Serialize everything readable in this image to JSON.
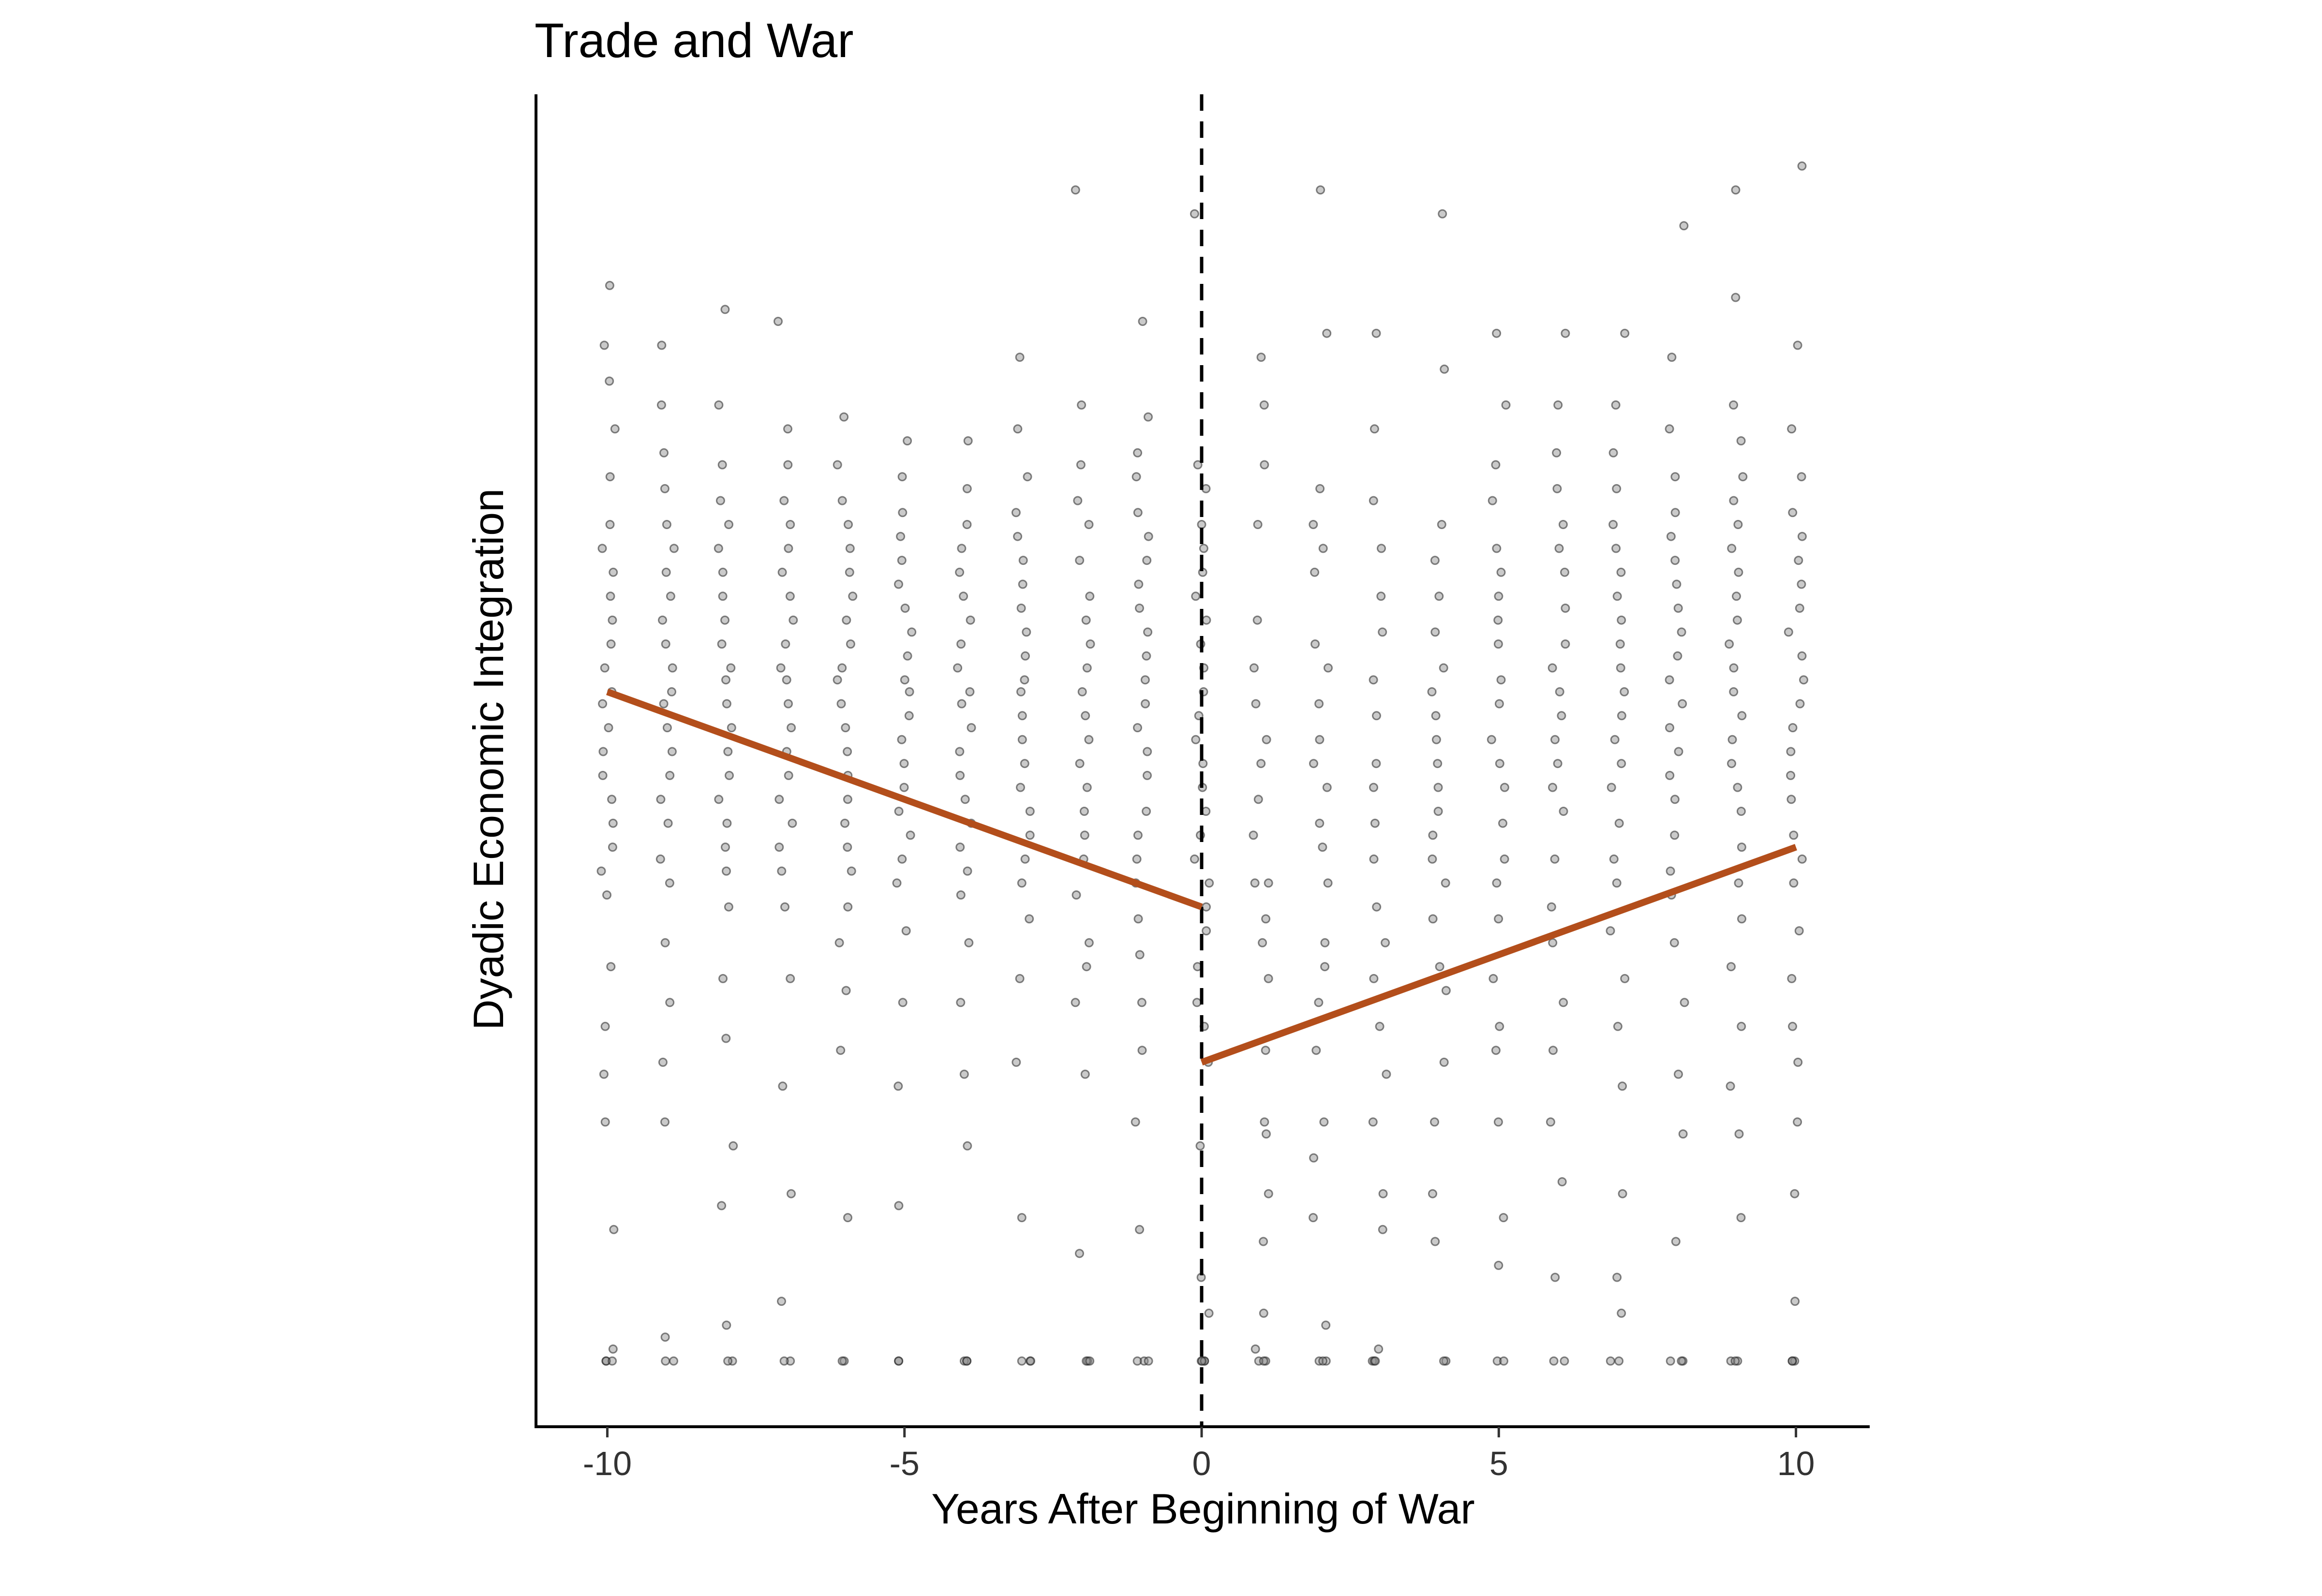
{
  "chart_data": {
    "type": "scatter",
    "title": "Trade and War",
    "xlabel": "Years After Beginning of War",
    "ylabel": "Dyadic Economic Integration",
    "xlim": [
      -11.2,
      11.2
    ],
    "ylim": [
      -0.055,
      1.06
    ],
    "x_ticks": [
      -10,
      -5,
      0,
      5,
      10
    ],
    "x_tick_labels": [
      "-10",
      "-5",
      "0",
      "5",
      "10"
    ],
    "y_ticks_shown": false,
    "grid": false,
    "legend": "none",
    "jitter_width": 0.13,
    "point_color": "#555555",
    "series": [
      {
        "type": "points",
        "description_values": "jittered observations per year",
        "per_year": [
          {
            "x": -10,
            "values": [
              0.9,
              0.85,
              0.82,
              0.78,
              0.74,
              0.7,
              0.68,
              0.66,
              0.64,
              0.62,
              0.6,
              0.58,
              0.56,
              0.55,
              0.53,
              0.51,
              0.49,
              0.47,
              0.45,
              0.43,
              0.41,
              0.39,
              0.33,
              0.28,
              0.24,
              0.2,
              0.11,
              0.01,
              0.0,
              0.0,
              0.0
            ]
          },
          {
            "x": -9,
            "values": [
              0.85,
              0.8,
              0.76,
              0.73,
              0.7,
              0.68,
              0.66,
              0.64,
              0.62,
              0.6,
              0.58,
              0.56,
              0.55,
              0.53,
              0.51,
              0.49,
              0.47,
              0.45,
              0.42,
              0.4,
              0.35,
              0.3,
              0.25,
              0.2,
              0.02,
              0.0,
              0.0
            ]
          },
          {
            "x": -8,
            "values": [
              0.88,
              0.8,
              0.75,
              0.72,
              0.7,
              0.68,
              0.66,
              0.64,
              0.62,
              0.6,
              0.58,
              0.57,
              0.55,
              0.53,
              0.51,
              0.49,
              0.47,
              0.45,
              0.43,
              0.41,
              0.38,
              0.32,
              0.27,
              0.18,
              0.13,
              0.03,
              0.0,
              0.0
            ]
          },
          {
            "x": -7,
            "values": [
              0.87,
              0.78,
              0.75,
              0.72,
              0.7,
              0.68,
              0.66,
              0.64,
              0.62,
              0.6,
              0.58,
              0.57,
              0.55,
              0.53,
              0.51,
              0.49,
              0.47,
              0.45,
              0.43,
              0.41,
              0.38,
              0.32,
              0.23,
              0.14,
              0.05,
              0.0,
              0.0
            ]
          },
          {
            "x": -6,
            "values": [
              0.79,
              0.75,
              0.72,
              0.7,
              0.68,
              0.66,
              0.64,
              0.62,
              0.6,
              0.58,
              0.57,
              0.55,
              0.53,
              0.51,
              0.49,
              0.47,
              0.45,
              0.43,
              0.41,
              0.38,
              0.35,
              0.31,
              0.26,
              0.12,
              0.0,
              0.0
            ]
          },
          {
            "x": -5,
            "values": [
              0.77,
              0.74,
              0.71,
              0.69,
              0.67,
              0.65,
              0.63,
              0.61,
              0.59,
              0.57,
              0.56,
              0.54,
              0.52,
              0.5,
              0.48,
              0.46,
              0.44,
              0.42,
              0.4,
              0.36,
              0.3,
              0.23,
              0.13,
              0.0,
              0.0
            ]
          },
          {
            "x": -4,
            "values": [
              0.77,
              0.73,
              0.7,
              0.68,
              0.66,
              0.64,
              0.62,
              0.6,
              0.58,
              0.56,
              0.55,
              0.53,
              0.51,
              0.49,
              0.47,
              0.45,
              0.43,
              0.41,
              0.39,
              0.35,
              0.3,
              0.24,
              0.18,
              0.0,
              0.0,
              0.0
            ]
          },
          {
            "x": -3,
            "values": [
              0.84,
              0.78,
              0.74,
              0.71,
              0.69,
              0.67,
              0.65,
              0.63,
              0.61,
              0.59,
              0.57,
              0.56,
              0.54,
              0.52,
              0.5,
              0.48,
              0.46,
              0.44,
              0.42,
              0.4,
              0.37,
              0.32,
              0.25,
              0.12,
              0.0,
              0.0,
              0.0
            ]
          },
          {
            "x": -2,
            "values": [
              0.98,
              0.8,
              0.75,
              0.72,
              0.7,
              0.67,
              0.64,
              0.62,
              0.6,
              0.58,
              0.56,
              0.54,
              0.52,
              0.5,
              0.48,
              0.46,
              0.44,
              0.42,
              0.39,
              0.35,
              0.33,
              0.3,
              0.24,
              0.09,
              0.0,
              0.0,
              0.0
            ]
          },
          {
            "x": -1,
            "values": [
              0.87,
              0.79,
              0.76,
              0.74,
              0.71,
              0.69,
              0.67,
              0.65,
              0.63,
              0.61,
              0.59,
              0.57,
              0.55,
              0.53,
              0.51,
              0.49,
              0.46,
              0.44,
              0.42,
              0.4,
              0.37,
              0.34,
              0.3,
              0.26,
              0.2,
              0.11,
              0.0,
              0.0,
              0.0
            ]
          },
          {
            "x": 0,
            "values": [
              0.96,
              0.75,
              0.73,
              0.7,
              0.68,
              0.66,
              0.64,
              0.62,
              0.6,
              0.58,
              0.56,
              0.54,
              0.52,
              0.5,
              0.48,
              0.46,
              0.44,
              0.42,
              0.4,
              0.38,
              0.36,
              0.33,
              0.3,
              0.28,
              0.25,
              0.18,
              0.07,
              0.04,
              0.0,
              0.0,
              0.0,
              0.0
            ]
          },
          {
            "x": 1,
            "values": [
              0.84,
              0.8,
              0.75,
              0.7,
              0.62,
              0.58,
              0.55,
              0.52,
              0.5,
              0.47,
              0.44,
              0.4,
              0.4,
              0.37,
              0.35,
              0.32,
              0.26,
              0.2,
              0.19,
              0.14,
              0.1,
              0.04,
              0.01,
              0.0,
              0.0,
              0.0
            ]
          },
          {
            "x": 2,
            "values": [
              0.98,
              0.86,
              0.73,
              0.7,
              0.68,
              0.66,
              0.6,
              0.58,
              0.55,
              0.52,
              0.5,
              0.48,
              0.45,
              0.43,
              0.4,
              0.35,
              0.33,
              0.3,
              0.26,
              0.2,
              0.17,
              0.12,
              0.03,
              0.0,
              0.0,
              0.0
            ]
          },
          {
            "x": 3,
            "values": [
              0.86,
              0.78,
              0.72,
              0.68,
              0.64,
              0.61,
              0.57,
              0.54,
              0.5,
              0.48,
              0.45,
              0.42,
              0.38,
              0.35,
              0.32,
              0.28,
              0.24,
              0.2,
              0.14,
              0.11,
              0.01,
              0.0,
              0.0,
              0.0
            ]
          },
          {
            "x": 4,
            "values": [
              0.96,
              0.83,
              0.7,
              0.67,
              0.64,
              0.61,
              0.58,
              0.56,
              0.54,
              0.52,
              0.5,
              0.48,
              0.46,
              0.44,
              0.42,
              0.4,
              0.37,
              0.33,
              0.31,
              0.25,
              0.2,
              0.14,
              0.1,
              0.0,
              0.0
            ]
          },
          {
            "x": 5,
            "values": [
              0.86,
              0.8,
              0.75,
              0.72,
              0.68,
              0.66,
              0.64,
              0.62,
              0.6,
              0.57,
              0.55,
              0.52,
              0.5,
              0.48,
              0.45,
              0.42,
              0.4,
              0.37,
              0.32,
              0.28,
              0.26,
              0.2,
              0.12,
              0.08,
              0.0,
              0.0
            ]
          },
          {
            "x": 6,
            "values": [
              0.86,
              0.8,
              0.76,
              0.73,
              0.7,
              0.68,
              0.66,
              0.63,
              0.6,
              0.58,
              0.56,
              0.54,
              0.52,
              0.5,
              0.48,
              0.46,
              0.42,
              0.38,
              0.35,
              0.3,
              0.26,
              0.2,
              0.15,
              0.07,
              0.0,
              0.0
            ]
          },
          {
            "x": 7,
            "values": [
              0.86,
              0.8,
              0.76,
              0.73,
              0.7,
              0.68,
              0.66,
              0.64,
              0.62,
              0.6,
              0.58,
              0.56,
              0.54,
              0.52,
              0.5,
              0.48,
              0.45,
              0.42,
              0.4,
              0.36,
              0.32,
              0.28,
              0.23,
              0.14,
              0.07,
              0.04,
              0.0,
              0.0
            ]
          },
          {
            "x": 8,
            "values": [
              0.95,
              0.84,
              0.78,
              0.74,
              0.71,
              0.69,
              0.67,
              0.65,
              0.63,
              0.61,
              0.59,
              0.57,
              0.55,
              0.53,
              0.51,
              0.49,
              0.47,
              0.44,
              0.41,
              0.39,
              0.35,
              0.3,
              0.24,
              0.19,
              0.1,
              0.0,
              0.0,
              0.0
            ]
          },
          {
            "x": 9,
            "values": [
              0.98,
              0.89,
              0.8,
              0.77,
              0.74,
              0.72,
              0.7,
              0.68,
              0.66,
              0.64,
              0.62,
              0.6,
              0.58,
              0.56,
              0.54,
              0.52,
              0.5,
              0.48,
              0.46,
              0.43,
              0.4,
              0.37,
              0.33,
              0.28,
              0.23,
              0.19,
              0.12,
              0.0,
              0.0,
              0.0
            ]
          },
          {
            "x": 10,
            "values": [
              1.0,
              0.85,
              0.78,
              0.74,
              0.71,
              0.69,
              0.67,
              0.65,
              0.63,
              0.61,
              0.59,
              0.57,
              0.55,
              0.53,
              0.51,
              0.49,
              0.47,
              0.44,
              0.42,
              0.4,
              0.36,
              0.32,
              0.28,
              0.25,
              0.2,
              0.14,
              0.05,
              0.0,
              0.0,
              0.0
            ]
          }
        ]
      },
      {
        "type": "line",
        "role": "pre-war fit",
        "color": "#B34E1B",
        "x": [
          -10,
          0
        ],
        "y": [
          0.56,
          0.38
        ]
      },
      {
        "type": "line",
        "role": "post-war fit",
        "color": "#B34E1B",
        "x": [
          0,
          10
        ],
        "y": [
          0.25,
          0.43
        ]
      }
    ],
    "reference_lines": [
      {
        "orientation": "vertical",
        "x": 0,
        "style": "dashed",
        "color": "#000000"
      }
    ]
  }
}
